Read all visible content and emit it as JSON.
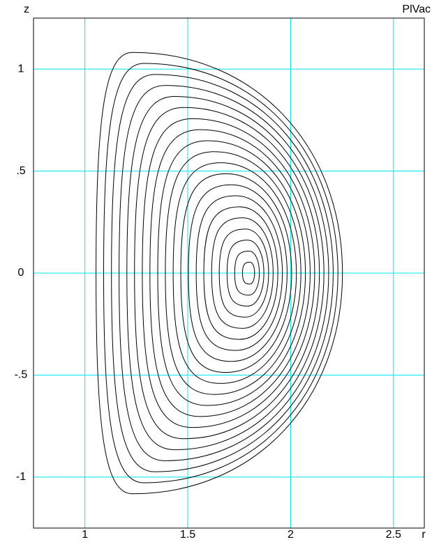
{
  "chart_data": {
    "type": "contour",
    "title": "PlVac",
    "xlabel": "r",
    "ylabel": "z",
    "xlim": [
      0.75,
      2.65
    ],
    "ylim": [
      -1.25,
      1.25
    ],
    "xticks": [
      1,
      1.5,
      2,
      2.5
    ],
    "yticks": [
      -1,
      {
        "value": -0.5,
        "label": "-.5"
      },
      0,
      {
        "value": 0.5,
        "label": ".5"
      },
      1
    ],
    "grid": true,
    "grid_color": "#00e5ee",
    "color": "#000000",
    "series": [
      {
        "r": [
          1.825,
          1.802,
          1.766,
          1.802
        ],
        "z": [
          0,
          0.054,
          0,
          -0.054
        ]
      },
      {
        "r": [
          1.848,
          1.797,
          1.728,
          1.797
        ],
        "z": [
          0,
          0.108,
          0,
          -0.108
        ]
      },
      {
        "r": [
          1.87,
          1.79,
          1.691,
          1.79
        ],
        "z": [
          0,
          0.162,
          0,
          -0.162
        ]
      },
      {
        "r": [
          1.893,
          1.78,
          1.653,
          1.78
        ],
        "z": [
          0,
          0.216,
          0,
          -0.216
        ]
      },
      {
        "r": [
          1.915,
          1.767,
          1.616,
          1.767
        ],
        "z": [
          0,
          0.271,
          0,
          -0.271
        ]
      },
      {
        "r": [
          1.938,
          1.752,
          1.578,
          1.752
        ],
        "z": [
          0,
          0.325,
          0,
          -0.325
        ]
      },
      {
        "r": [
          1.96,
          1.733,
          1.541,
          1.733
        ],
        "z": [
          0,
          0.379,
          0,
          -0.379
        ]
      },
      {
        "r": [
          1.983,
          1.712,
          1.503,
          1.712
        ],
        "z": [
          0,
          0.433,
          0,
          -0.433
        ]
      },
      {
        "r": [
          2.005,
          1.687,
          1.466,
          1.687
        ],
        "z": [
          0,
          0.487,
          0,
          -0.487
        ]
      },
      {
        "r": [
          2.028,
          1.66,
          1.429,
          1.66
        ],
        "z": [
          0,
          0.541,
          0,
          -0.541
        ]
      },
      {
        "r": [
          2.05,
          1.63,
          1.391,
          1.63
        ],
        "z": [
          0,
          0.595,
          0,
          -0.595
        ]
      },
      {
        "r": [
          2.072,
          1.597,
          1.354,
          1.597
        ],
        "z": [
          0,
          0.649,
          0,
          -0.649
        ]
      },
      {
        "r": [
          2.095,
          1.561,
          1.316,
          1.561
        ],
        "z": [
          0,
          0.703,
          0,
          -0.703
        ]
      },
      {
        "r": [
          2.117,
          1.523,
          1.279,
          1.523
        ],
        "z": [
          0,
          0.757,
          0,
          -0.757
        ]
      },
      {
        "r": [
          2.14,
          1.481,
          1.241,
          1.481
        ],
        "z": [
          0,
          0.812,
          0,
          -0.812
        ]
      },
      {
        "r": [
          2.162,
          1.437,
          1.204,
          1.437
        ],
        "z": [
          0,
          0.866,
          0,
          -0.866
        ]
      },
      {
        "r": [
          2.185,
          1.39,
          1.166,
          1.39
        ],
        "z": [
          0,
          0.92,
          0,
          -0.92
        ]
      },
      {
        "r": [
          2.207,
          1.34,
          1.129,
          1.34
        ],
        "z": [
          0,
          0.974,
          0,
          -0.974
        ]
      },
      {
        "r": [
          2.23,
          1.287,
          1.091,
          1.287
        ],
        "z": [
          0,
          1.028,
          0,
          -1.028
        ]
      },
      {
        "r": [
          2.252,
          1.231,
          1.054,
          1.231
        ],
        "z": [
          0,
          1.082,
          0,
          -1.082
        ]
      }
    ]
  }
}
